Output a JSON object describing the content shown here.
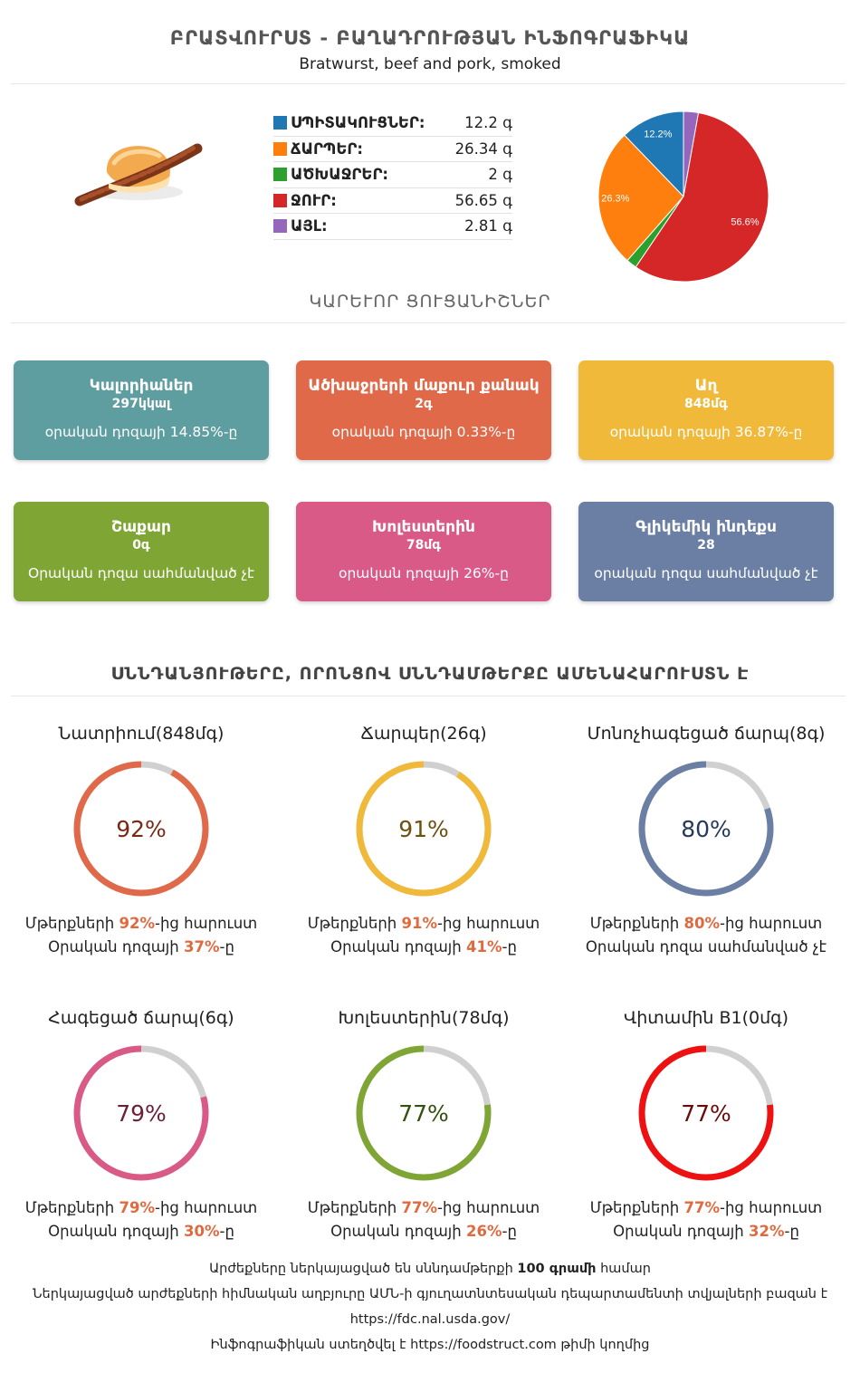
{
  "header": {
    "title": "ԲՐԱՏՎՈՒՐՍՏ - ԲԱՂԱԴՐՈՒԹՅԱՆ ԻՆՖՈԳՐԱՖԻԿԱ",
    "subtitle": "Bratwurst, beef and pork, smoked"
  },
  "composition": {
    "items": [
      {
        "label": "ՍՊԻՏԱԿՈՒՑՆԵՐ:",
        "value": "12.2 գ",
        "color": "#1f77b4"
      },
      {
        "label": "ՃԱՐՊԵՐ:",
        "value": "26.34 գ",
        "color": "#ff7f0e"
      },
      {
        "label": "ԱԾԽԱՋՐԵՐ:",
        "value": "2 գ",
        "color": "#2ca02c"
      },
      {
        "label": "ՋՈՒՐ:",
        "value": "56.65 գ",
        "color": "#d62728"
      },
      {
        "label": "ԱՅԼ:",
        "value": "2.81 գ",
        "color": "#9467bd"
      }
    ]
  },
  "chart_data": {
    "type": "pie",
    "slices": [
      {
        "name": "ՍՊԻՏԱԿՈՒՑՆԵՐ",
        "value": 12.2,
        "label": "12.2%",
        "color": "#1f77b4"
      },
      {
        "name": "ՃԱՐՊԵՐ",
        "value": 26.34,
        "label": "26.3%",
        "color": "#ff7f0e"
      },
      {
        "name": "ԱԾԽԱՋՐԵՐ",
        "value": 2,
        "label": "",
        "color": "#2ca02c"
      },
      {
        "name": "ՋՈՒՐ",
        "value": 56.65,
        "label": "56.6%",
        "color": "#d62728"
      },
      {
        "name": "ԱՅԼ",
        "value": 2.81,
        "label": "",
        "color": "#9467bd"
      }
    ]
  },
  "key_section": {
    "title": "ԿԱՐԵՒՈՐ ՑՈՒՑԱՆԻՇՆԵՐ"
  },
  "cards": [
    {
      "title": "Կալորիաներ",
      "value": "297կկալ",
      "note": "օրական դոզայի 14.85%-ը",
      "color": "#5f9ea0"
    },
    {
      "title": "Ածխաջրերի մաքուր քանակ",
      "value": "2գ",
      "note": "օրական դոզայի 0.33%-ը",
      "color": "#e0694a"
    },
    {
      "title": "Աղ",
      "value": "848մգ",
      "note": "օրական դոզայի 36.87%-ը",
      "color": "#f0b93a"
    },
    {
      "title": "Շաքար",
      "value": "0գ",
      "note": "Օրական դոզա սահմանված չէ",
      "color": "#7fa534"
    },
    {
      "title": "Խոլեստերին",
      "value": "78մգ",
      "note": "օրական դոզայի 26%-ը",
      "color": "#d95a86"
    },
    {
      "title": "Գլիկեմիկ ինդեքս",
      "value": "28",
      "note": "օրական դոզա սահմանված չէ",
      "color": "#6a7fa3"
    }
  ],
  "top_section": {
    "title": "ՍՆՆԴԱՆՅՈՒԹԵՐԸ, ՈՐՈՆՑՈՎ ՍՆՆԴԱՄԹԵՐՔԸ ԱՄԵՆԱՀԱՐՈՒՍՏՆ Է"
  },
  "nutrients": [
    {
      "title": "Նատրիում(848մգ)",
      "percent": 92,
      "percent_text": "92%",
      "ring_color": "#e0694a",
      "text_color": "#7a2a14",
      "line1_pre": "Մթերքների ",
      "line1_bold": "92%",
      "line1_post": "-ից հարուստ",
      "line2_pre": "Օրական դոզայի ",
      "line2_bold": "37%",
      "line2_post": "-ը"
    },
    {
      "title": "Ճարպեր(26գ)",
      "percent": 91,
      "percent_text": "91%",
      "ring_color": "#f0b93a",
      "text_color": "#6b5010",
      "line1_pre": "Մթերքների ",
      "line1_bold": "91%",
      "line1_post": "-ից հարուստ",
      "line2_pre": "Օրական դոզայի ",
      "line2_bold": "41%",
      "line2_post": "-ը"
    },
    {
      "title": "Մոնոչհագեցած ճարպ(8գ)",
      "percent": 80,
      "percent_text": "80%",
      "ring_color": "#6a7fa3",
      "text_color": "#253a5a",
      "line1_pre": "Մթերքների ",
      "line1_bold": "80%",
      "line1_post": "-ից հարուստ",
      "line2_pre": "Օրական դոզա սահմանված չէ",
      "line2_bold": "",
      "line2_post": ""
    },
    {
      "title": "Հագեցած ճարպ(6գ)",
      "percent": 79,
      "percent_text": "79%",
      "ring_color": "#d95a86",
      "text_color": "#6b1f3b",
      "line1_pre": "Մթերքների ",
      "line1_bold": "79%",
      "line1_post": "-ից հարուստ",
      "line2_pre": "Օրական դոզայի ",
      "line2_bold": "30%",
      "line2_post": "-ը"
    },
    {
      "title": "Խոլեստերին(78մգ)",
      "percent": 77,
      "percent_text": "77%",
      "ring_color": "#7fa534",
      "text_color": "#33500f",
      "line1_pre": "Մթերքների ",
      "line1_bold": "77%",
      "line1_post": "-ից հարուստ",
      "line2_pre": "Օրական դոզայի ",
      "line2_bold": "26%",
      "line2_post": "-ը"
    },
    {
      "title": "Վիտամին B1(0մգ)",
      "percent": 77,
      "percent_text": "77%",
      "ring_color": "#ee1111",
      "text_color": "#6b0a0a",
      "line1_pre": "Մթերքների ",
      "line1_bold": "77%",
      "line1_post": "-ից հարուստ",
      "line2_pre": "Օրական դոզայի ",
      "line2_bold": "32%",
      "line2_post": "-ը"
    }
  ],
  "footer": {
    "line1_pre": "Արժեքները ներկայացված են սննդամթերքի ",
    "line1_bold": "100 գրամի",
    "line1_post": " համար",
    "line2": "Ներկայացված արժեքների հիմնական աղբյուրը ԱՄՆ-ի գյուղատնտեսական դեպարտամենտի տվյալների բազան է",
    "line3": "https://fdc.nal.usda.gov/",
    "line4_pre": "Ինֆոգրաֆիկան ստեղծվել է ",
    "line4_link": "https://foodstruct.com",
    "line4_post": " թիմի կողմից"
  }
}
